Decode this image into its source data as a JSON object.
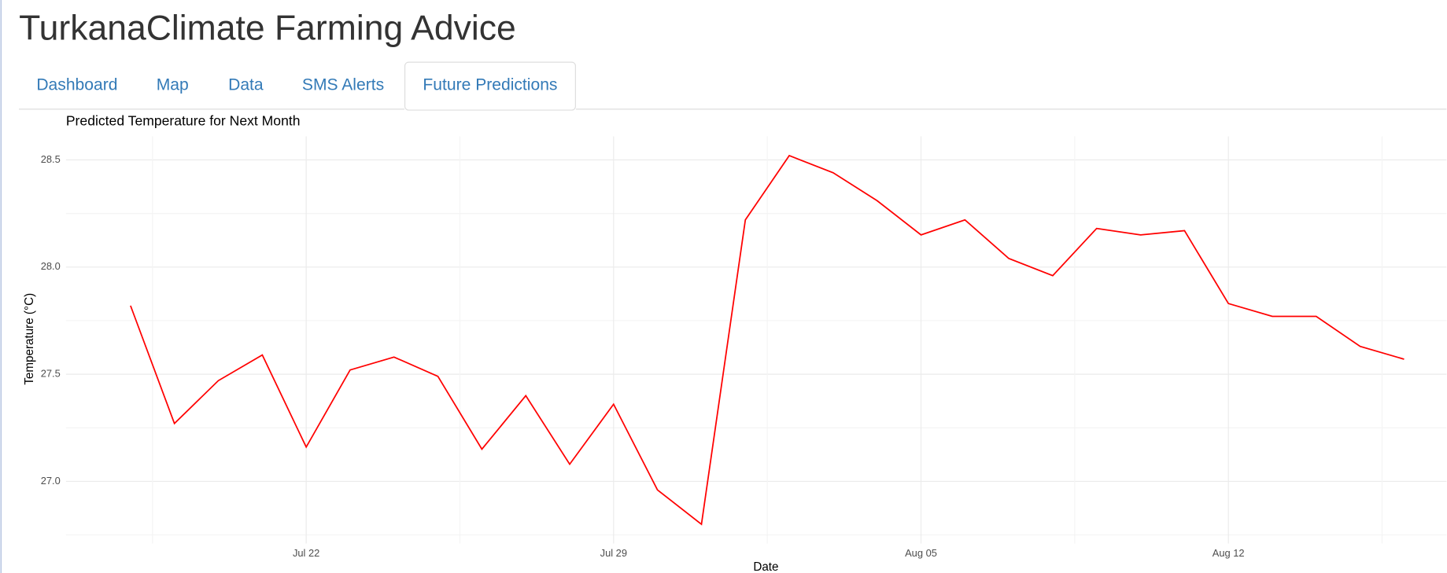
{
  "header": {
    "title": "TurkanaClimate Farming Advice"
  },
  "tabs": [
    "Dashboard",
    "Map",
    "Data",
    "SMS Alerts",
    "Future Predictions"
  ],
  "active_tab": 4,
  "chart_data": {
    "type": "line",
    "title": "Predicted Temperature for Next Month",
    "x_label": "Date",
    "y_label": "Temperature (°C)",
    "categories": [
      "Jul 18",
      "Jul 19",
      "Jul 20",
      "Jul 21",
      "Jul 22",
      "Jul 23",
      "Jul 24",
      "Jul 25",
      "Jul 26",
      "Jul 27",
      "Jul 28",
      "Jul 29",
      "Jul 30",
      "Jul 31",
      "Aug 01",
      "Aug 02",
      "Aug 03",
      "Aug 04",
      "Aug 05",
      "Aug 06",
      "Aug 07",
      "Aug 08",
      "Aug 09",
      "Aug 10",
      "Aug 11",
      "Aug 12",
      "Aug 13",
      "Aug 14",
      "Aug 15",
      "Aug 16"
    ],
    "series": [
      {
        "name": "Temperature",
        "color": "#ff0000",
        "values": [
          27.82,
          27.27,
          27.47,
          27.59,
          27.16,
          27.52,
          27.58,
          27.49,
          27.15,
          27.4,
          27.08,
          27.36,
          26.96,
          26.8,
          28.22,
          28.52,
          28.44,
          28.31,
          28.15,
          28.22,
          28.04,
          27.96,
          28.18,
          28.15,
          28.17,
          27.83,
          27.77,
          27.77,
          27.63,
          27.57
        ]
      }
    ],
    "xticks": [
      "Jul 22",
      "Jul 29",
      "Aug 05",
      "Aug 12"
    ],
    "ylim": [
      26.71,
      28.61
    ],
    "yticks": [
      {
        "value": 27,
        "label": "27.0"
      },
      {
        "value": 27.5,
        "label": "27.5"
      },
      {
        "value": 28,
        "label": "28.0"
      },
      {
        "value": 28.5,
        "label": "28.5"
      }
    ],
    "grid": true
  }
}
